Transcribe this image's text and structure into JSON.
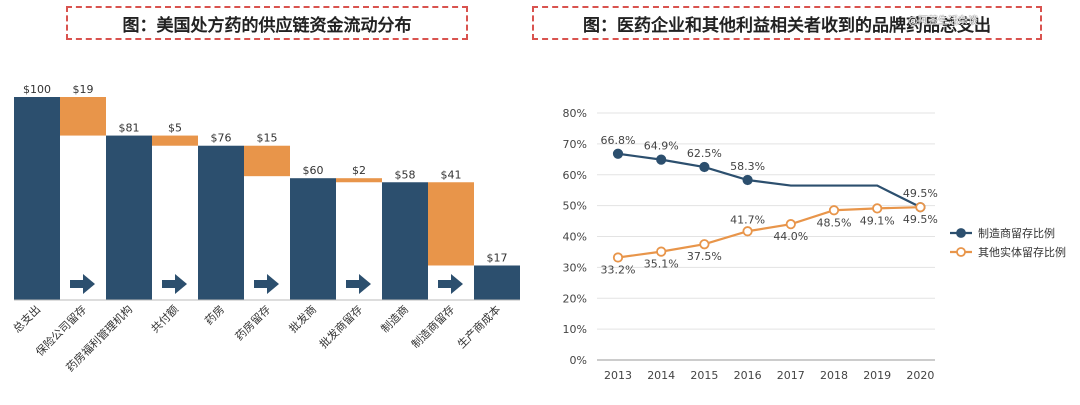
{
  "colors": {
    "navy": "#2c4f6e",
    "orange": "#e8954a",
    "title_border": "#d9534f"
  },
  "left_title": "图：美国处方药的供应链资金流动分布",
  "right_title": "图：医药企业和其他利益相关者收到的品牌药品总支出",
  "watermark": "@阿茶生活杂谈",
  "chart_data": [
    {
      "type": "bar",
      "subtype": "waterfall",
      "title": "图：美国处方药的供应链资金流动分布",
      "categories": [
        "总支出",
        "保险公司留存",
        "药房福利管理机构",
        "共付额",
        "药房",
        "药房留存",
        "批发商",
        "批发商留存",
        "制造商",
        "制造商留存",
        "生产商成本"
      ],
      "values": [
        100,
        19,
        81,
        5,
        76,
        15,
        60,
        2,
        58,
        41,
        17
      ],
      "bar_kind": [
        "total",
        "retention",
        "total",
        "retention",
        "total",
        "retention",
        "total",
        "retention",
        "total",
        "retention",
        "total"
      ],
      "value_labels": [
        "$100",
        "$19",
        "$81",
        "$5",
        "$76",
        "$15",
        "$60",
        "$2",
        "$58",
        "$41",
        "$17"
      ],
      "arrow_icons": [
        "arrow-right-icon",
        "arrow-right-icon",
        "arrow-right-icon",
        "arrow-right-icon",
        "arrow-right-icon"
      ],
      "ylim": [
        0,
        100
      ],
      "grid": false
    },
    {
      "type": "line",
      "title": "图：医药企业和其他利益相关者收到的品牌药品总支出",
      "x": [
        "2013",
        "2014",
        "2015",
        "2016",
        "2017",
        "2018",
        "2019",
        "2020"
      ],
      "series": [
        {
          "name": "制造商留存比例",
          "values": [
            66.8,
            64.9,
            62.5,
            58.3,
            56.5,
            56.5,
            56.5,
            49.5
          ],
          "labels": [
            "66.8%",
            "64.9%",
            "62.5%",
            "58.3%",
            "",
            "",
            "",
            "49.5%"
          ],
          "color": "#2c4f6e"
        },
        {
          "name": "其他实体留存比例",
          "values": [
            33.2,
            35.1,
            37.5,
            41.7,
            44.0,
            48.5,
            49.1,
            49.5
          ],
          "labels": [
            "33.2%",
            "35.1%",
            "37.5%",
            "41.7%",
            "44.0%",
            "48.5%",
            "49.1%",
            "49.5%"
          ],
          "color": "#e8954a"
        }
      ],
      "y_ticks": [
        "0%",
        "10%",
        "20%",
        "30%",
        "40%",
        "50%",
        "60%",
        "70%",
        "80%"
      ],
      "ylim": [
        0,
        80
      ],
      "grid": true,
      "legend": "right"
    }
  ]
}
